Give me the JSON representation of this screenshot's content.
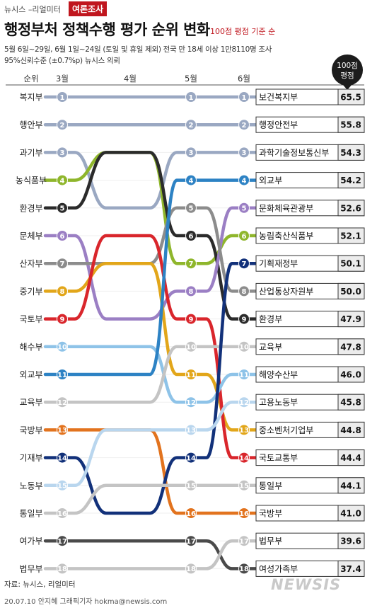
{
  "header": {
    "brand": "뉴시스 –리얼미터",
    "tag": "여론조사",
    "title": "행정부처 정책수행 평가 순위 변화",
    "basis": "100점 평점 기준 순",
    "sub1": "5월 6일~29일, 6월 1일~24일 (토일 및 휴일 제외) 전국 만 18세 이상 1만8110명 조사",
    "sub2": "95%신뢰수준 (±0.7%p) 뉴시스 의뢰"
  },
  "footer": {
    "source": "자료: 뉴시스, 리얼미터",
    "credit": "20.07.10 안지혜 그래픽기자 hokma@newsis.com",
    "logo": "NEWSIS"
  },
  "chart_data": {
    "type": "bump",
    "rank_header": "순위",
    "columns": [
      "3월",
      "4월",
      "5월",
      "6월"
    ],
    "score_header": "100점 평점",
    "ministries": [
      {
        "short": "복지부",
        "full": "보건복지부",
        "ranks": [
          1,
          1,
          1,
          1
        ],
        "score": "65.5",
        "color": "#9aa8c2"
      },
      {
        "short": "행안부",
        "full": "행정안전부",
        "ranks": [
          2,
          2,
          2,
          2
        ],
        "score": "55.8",
        "color": "#9aa8c2"
      },
      {
        "short": "과기부",
        "full": "과학기술정보통신부",
        "ranks": [
          3,
          5,
          3,
          3
        ],
        "score": "54.3",
        "color": "#9aa8c2"
      },
      {
        "short": "농식품부",
        "full": "농림축산식품부",
        "ranks": [
          4,
          3,
          7,
          6
        ],
        "score": "52.1",
        "color": "#8fb62c"
      },
      {
        "short": "환경부",
        "full": "환경부",
        "ranks": [
          5,
          3,
          6,
          9
        ],
        "score": "47.9",
        "color": "#2b2b2b"
      },
      {
        "short": "문체부",
        "full": "문화체육관광부",
        "ranks": [
          6,
          9,
          8,
          5
        ],
        "score": "52.6",
        "color": "#9b7fc4"
      },
      {
        "short": "산자부",
        "full": "산업통상자원부",
        "ranks": [
          7,
          7,
          5,
          8
        ],
        "score": "50.0",
        "color": "#8c8c8c"
      },
      {
        "short": "중기부",
        "full": "중소벤처기업부",
        "ranks": [
          8,
          7,
          11,
          13
        ],
        "score": "44.8",
        "color": "#e2a61a"
      },
      {
        "short": "국토부",
        "full": "국토교통부",
        "ranks": [
          9,
          6,
          9,
          14
        ],
        "score": "44.4",
        "color": "#d9262c"
      },
      {
        "short": "해수부",
        "full": "해양수산부",
        "ranks": [
          10,
          10,
          12,
          11
        ],
        "score": "46.0",
        "color": "#8ec3e8"
      },
      {
        "short": "외교부",
        "full": "외교부",
        "ranks": [
          11,
          11,
          4,
          4
        ],
        "score": "54.2",
        "color": "#2d82c4"
      },
      {
        "short": "교육부",
        "full": "교육부",
        "ranks": [
          12,
          12,
          10,
          10
        ],
        "score": "47.8",
        "color": "#c4c4c4"
      },
      {
        "short": "국방부",
        "full": "국방부",
        "ranks": [
          13,
          13,
          16,
          16
        ],
        "score": "41.0",
        "color": "#e2731e"
      },
      {
        "short": "기재부",
        "full": "기획재정부",
        "ranks": [
          14,
          16,
          14,
          7
        ],
        "score": "50.1",
        "color": "#12317a"
      },
      {
        "short": "노동부",
        "full": "고용노동부",
        "ranks": [
          15,
          13,
          13,
          12
        ],
        "score": "45.8",
        "color": "#b9d6ee"
      },
      {
        "short": "통일부",
        "full": "통일부",
        "ranks": [
          16,
          15,
          15,
          15
        ],
        "score": "44.1",
        "color": "#c4c4c4"
      },
      {
        "short": "여가부",
        "full": "여성가족부",
        "ranks": [
          17,
          17,
          17,
          18
        ],
        "score": "37.4",
        "color": "#4a4a4a"
      },
      {
        "short": "법무부",
        "full": "법무부",
        "ranks": [
          18,
          18,
          18,
          17
        ],
        "score": "39.6",
        "color": "#c4c4c4"
      }
    ]
  }
}
